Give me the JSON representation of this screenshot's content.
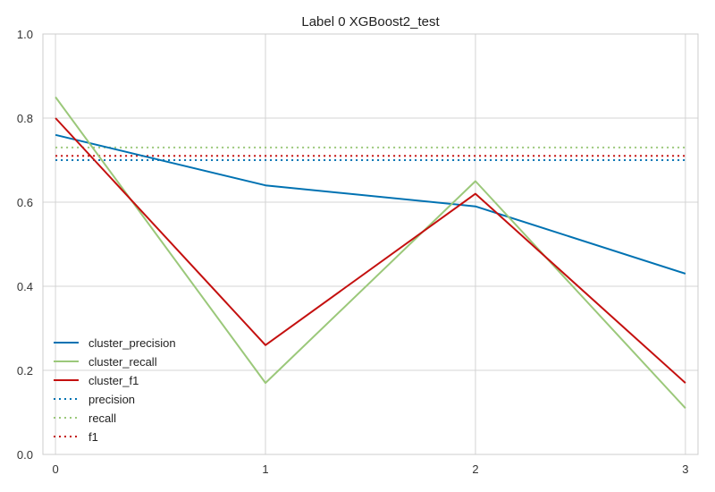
{
  "chart_data": {
    "type": "line",
    "title": "Label 0 XGBoost2_test",
    "xlabel": "",
    "ylabel": "",
    "x": [
      0,
      1,
      2,
      3
    ],
    "x_tick_labels": [
      "0",
      "1",
      "2",
      "3"
    ],
    "y_tick_labels": [
      "0.0",
      "0.2",
      "0.4",
      "0.6",
      "0.8",
      "1.0"
    ],
    "ylim": [
      0,
      1
    ],
    "xlim": [
      -0.06,
      3.06
    ],
    "grid": true,
    "legend_placement": "lower-left",
    "series": [
      {
        "name": "cluster_precision",
        "values": [
          0.76,
          0.64,
          0.59,
          0.43
        ],
        "color": "#0072B2",
        "style": "solid"
      },
      {
        "name": "cluster_recall",
        "values": [
          0.85,
          0.17,
          0.65,
          0.11
        ],
        "color": "#9BC87A",
        "style": "solid"
      },
      {
        "name": "cluster_f1",
        "values": [
          0.8,
          0.26,
          0.62,
          0.17
        ],
        "color": "#C4100F",
        "style": "solid"
      },
      {
        "name": "precision",
        "values": [
          0.7,
          0.7,
          0.7,
          0.7
        ],
        "color": "#0072B2",
        "style": "dotted"
      },
      {
        "name": "recall",
        "values": [
          0.73,
          0.73,
          0.73,
          0.73
        ],
        "color": "#9BC87A",
        "style": "dotted"
      },
      {
        "name": "f1",
        "values": [
          0.71,
          0.71,
          0.71,
          0.71
        ],
        "color": "#C4100F",
        "style": "dotted"
      }
    ]
  }
}
